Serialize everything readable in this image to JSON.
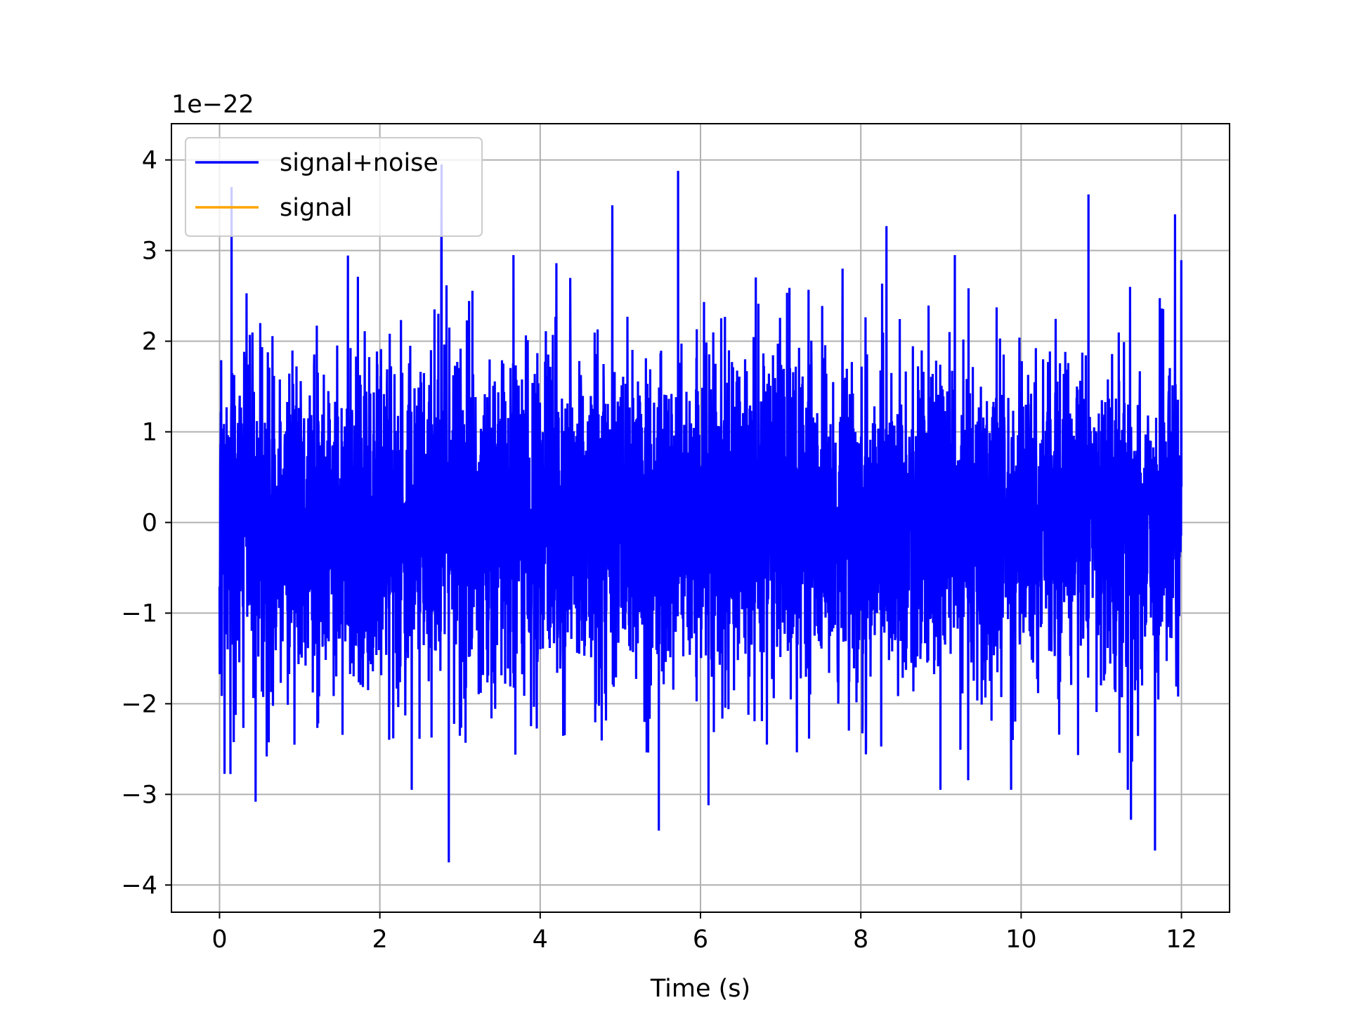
{
  "chart_data": {
    "type": "line",
    "title": "",
    "xlabel": "Time (s)",
    "ylabel": "",
    "y_offset_label": "1e−22",
    "xlim": [
      -0.6,
      12.6
    ],
    "ylim": [
      -4.3,
      4.4
    ],
    "x_ticks": [
      0,
      2,
      4,
      6,
      8,
      10,
      12
    ],
    "x_tick_labels": [
      "0",
      "2",
      "4",
      "6",
      "8",
      "10",
      "12"
    ],
    "y_ticks": [
      -4,
      -3,
      -2,
      -1,
      0,
      1,
      2,
      3,
      4
    ],
    "y_tick_labels": [
      "−4",
      "−3",
      "−2",
      "−1",
      "0",
      "1",
      "2",
      "3",
      "4"
    ],
    "grid": true,
    "legend_position": "top-left",
    "series": [
      {
        "name": "signal+noise",
        "color": "#0000ff",
        "x_range": [
          0,
          12
        ],
        "approx_std": 0.9,
        "notable_peaks": [
          {
            "x": 0.15,
            "y": 3.7
          },
          {
            "x": 2.77,
            "y": 3.95
          },
          {
            "x": 4.9,
            "y": 3.5
          },
          {
            "x": 5.72,
            "y": 3.88
          },
          {
            "x": 8.32,
            "y": 3.27
          },
          {
            "x": 10.84,
            "y": 3.62
          },
          {
            "x": 11.92,
            "y": 3.4
          }
        ],
        "notable_troughs": [
          {
            "x": 2.86,
            "y": -3.75
          },
          {
            "x": 5.48,
            "y": -3.4
          },
          {
            "x": 6.1,
            "y": -3.12
          },
          {
            "x": 0.45,
            "y": -3.08
          },
          {
            "x": 11.67,
            "y": -3.62
          },
          {
            "x": 11.37,
            "y": -3.28
          }
        ]
      },
      {
        "name": "signal",
        "color": "#ffa500",
        "x_range": [
          0,
          12
        ],
        "approx_amplitude": 0.0
      }
    ]
  }
}
